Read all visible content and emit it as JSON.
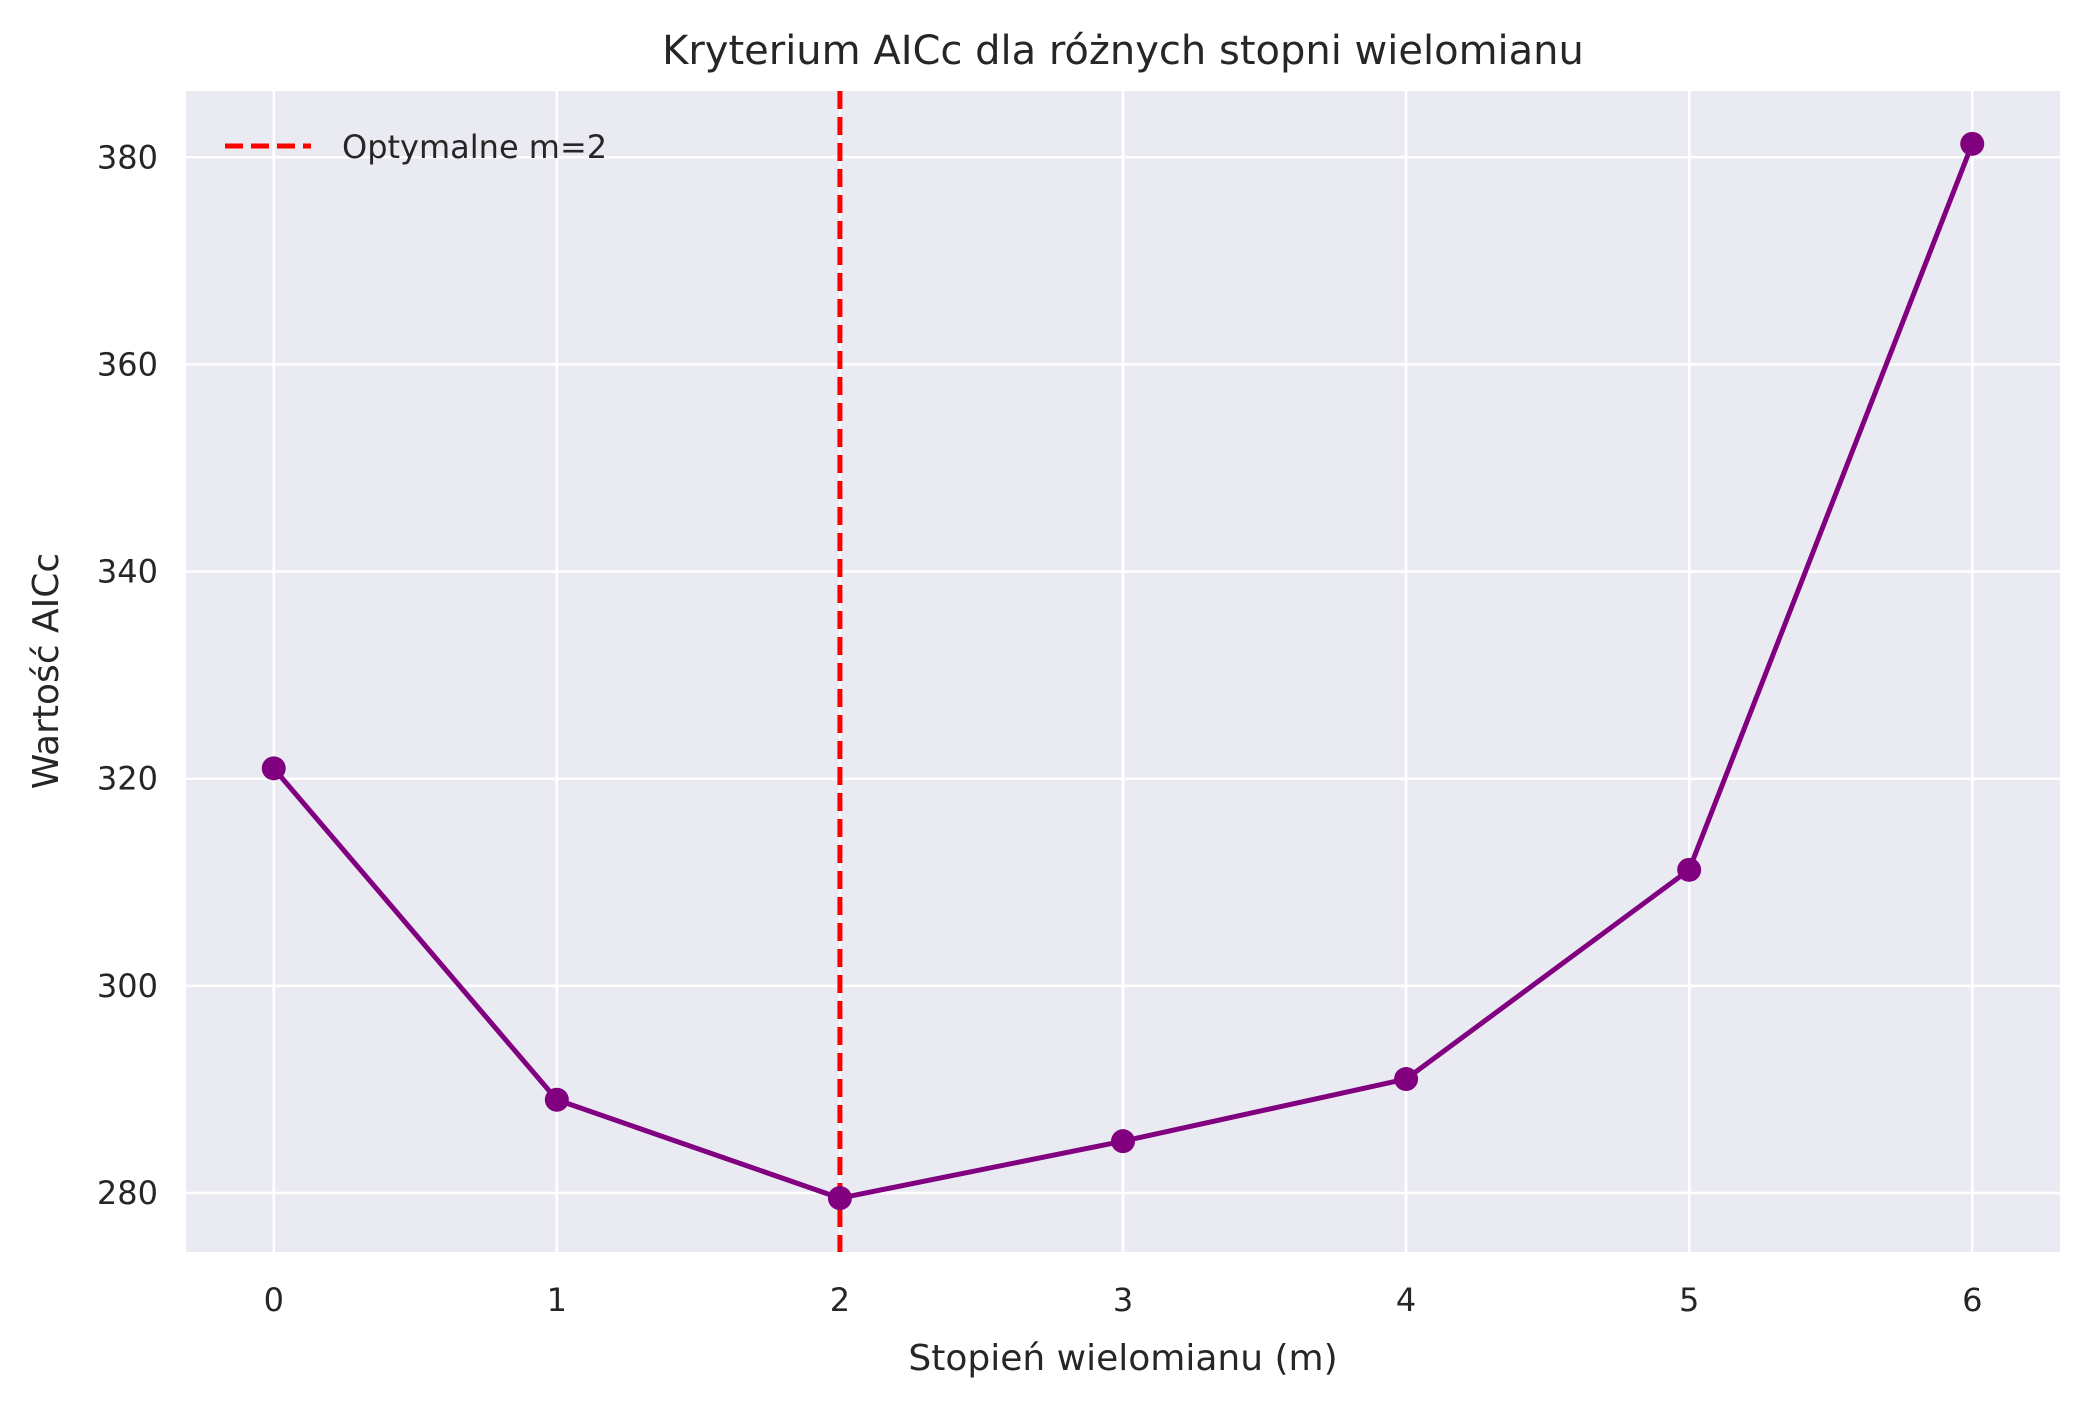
{
  "chart_data": {
    "type": "line",
    "title": "Kryterium AICc dla różnych stopni wielomianu",
    "xlabel": "Stopień wielomianu (m)",
    "ylabel": "Wartość AICc",
    "x": [
      0,
      1,
      2,
      3,
      4,
      5,
      6
    ],
    "series": [
      {
        "values": [
          321.0,
          289.0,
          279.5,
          285.0,
          291.0,
          311.2,
          381.3
        ],
        "color": "#800080",
        "marker": "circle"
      }
    ],
    "reference_line": {
      "orientation": "vertical",
      "x": 2,
      "color": "#ff0000",
      "style": "dashed",
      "label": "Optymalne m=2"
    },
    "xticks": [
      0,
      1,
      2,
      3,
      4,
      5,
      6
    ],
    "yticks": [
      280,
      300,
      320,
      340,
      360,
      380
    ],
    "xlim": [
      -0.31,
      6.31
    ],
    "ylim": [
      274.3,
      386.4
    ],
    "grid": true,
    "background_color": "#eaeaf2",
    "grid_color": "#ffffff",
    "legend_position": "upper-left"
  }
}
